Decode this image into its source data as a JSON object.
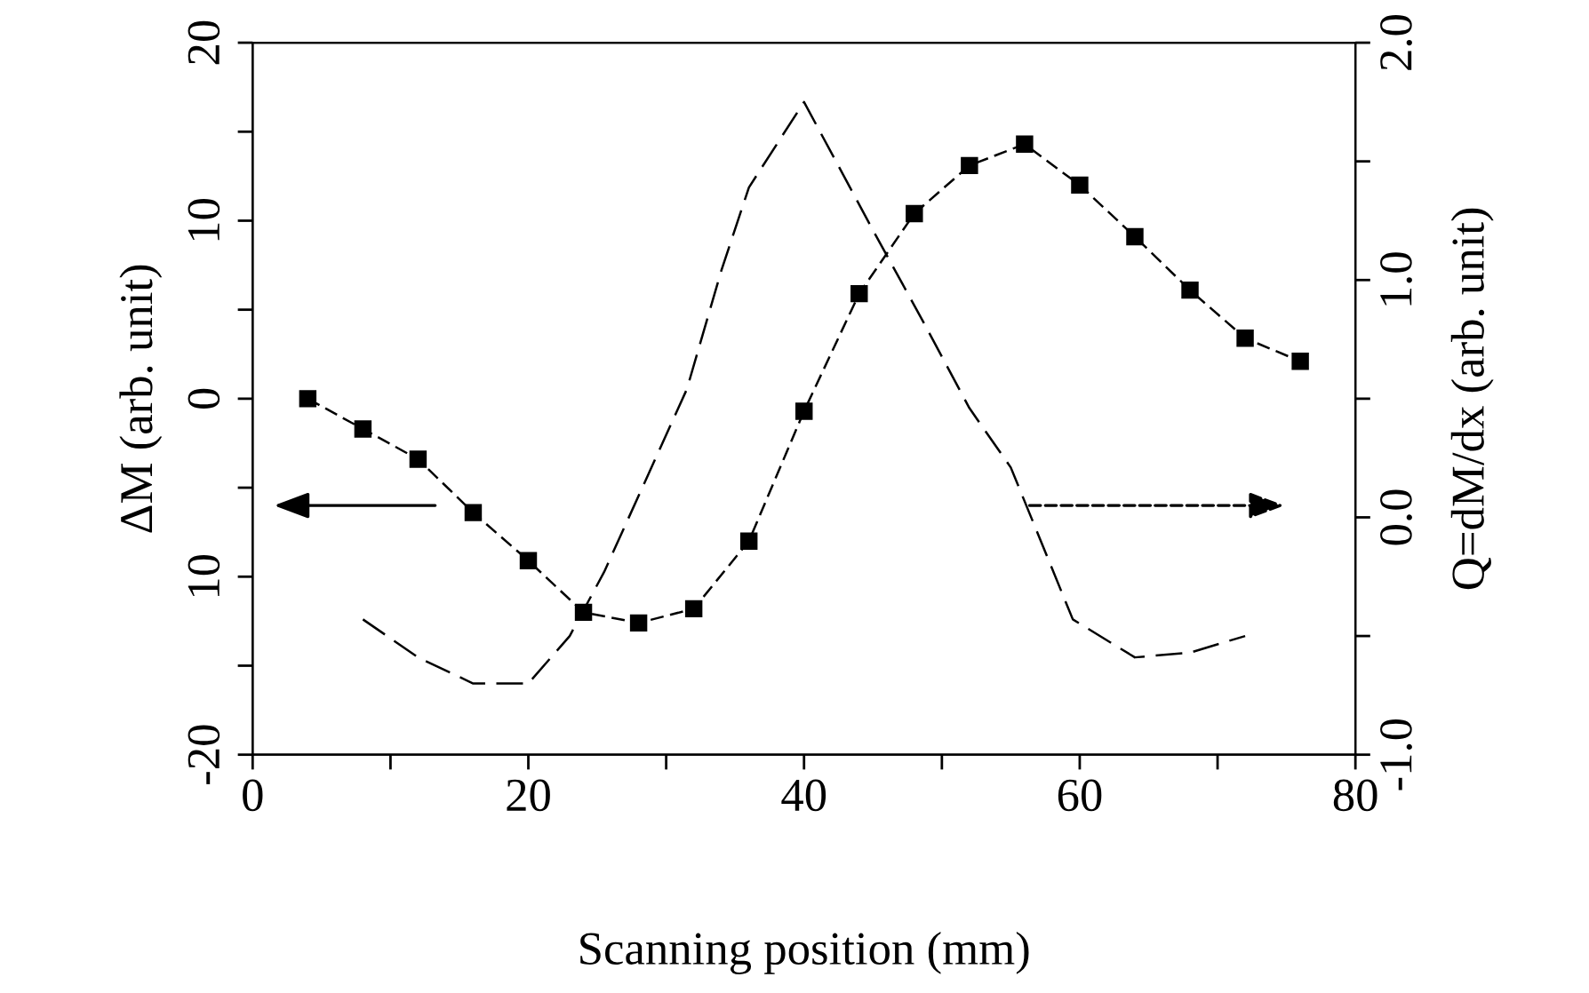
{
  "chart_data": {
    "type": "line",
    "xlabel": "Scanning position (mm)",
    "ylabel": "ΔM (arb. unit)",
    "y2label": "Q=dM/dx (arb. unit)",
    "xlim": [
      0,
      80
    ],
    "xticks": [
      0,
      {
        "value": 10,
        "label": null
      },
      20,
      {
        "value": 30,
        "label": null
      },
      40,
      {
        "value": 50,
        "label": null
      },
      60,
      {
        "value": 70,
        "label": null
      },
      80
    ],
    "ylim": [
      -20,
      20
    ],
    "yticks": [
      -20,
      {
        "value": -15,
        "label": null
      },
      {
        "value": -10,
        "label": "10"
      },
      {
        "value": -5,
        "label": null
      },
      0,
      {
        "value": 5,
        "label": null
      },
      10,
      {
        "value": 15,
        "label": null
      },
      20
    ],
    "y2lim": [
      -1.0,
      2.0
    ],
    "y2ticks": [
      {
        "value": -1.0,
        "label": "-1.0"
      },
      {
        "value": -0.5,
        "label": null
      },
      {
        "value": 0.0,
        "label": "0.0"
      },
      {
        "value": 0.5,
        "label": null
      },
      {
        "value": 1.0,
        "label": "1.0"
      },
      {
        "value": 1.5,
        "label": null
      },
      {
        "value": 2.0,
        "label": "2.0"
      }
    ],
    "grid": false,
    "legend": false,
    "series": [
      {
        "color": "#000000",
        "marker": "square",
        "line_style": "dashed",
        "x": [
          4,
          8,
          12,
          16,
          20,
          24,
          28,
          32,
          36,
          40,
          44,
          48,
          52,
          56,
          60,
          64,
          68,
          72,
          76
        ],
        "values": [
          0,
          -1.7,
          -3.4,
          -6.4,
          -9.1,
          -12.0,
          -12.6,
          -11.8,
          -8.0,
          -0.7,
          5.9,
          10.4,
          13.1,
          14.3,
          12.0,
          9.1,
          6.1,
          3.4,
          2.1
        ]
      },
      {
        "color": "#000000",
        "marker": "none",
        "line_style": "dashed",
        "axis": "y2",
        "x": [
          8,
          12,
          16,
          20,
          23,
          25.5,
          31.5,
          34,
          36,
          40,
          45,
          48.5,
          52,
          55,
          59.5,
          64,
          68,
          72
        ],
        "values": [
          -0.43,
          -0.59,
          -0.7,
          -0.7,
          -0.5,
          -0.23,
          0.54,
          1.04,
          1.39,
          1.75,
          1.21,
          0.84,
          0.46,
          0.21,
          -0.43,
          -0.59,
          -0.57,
          -0.5
        ]
      }
    ]
  }
}
